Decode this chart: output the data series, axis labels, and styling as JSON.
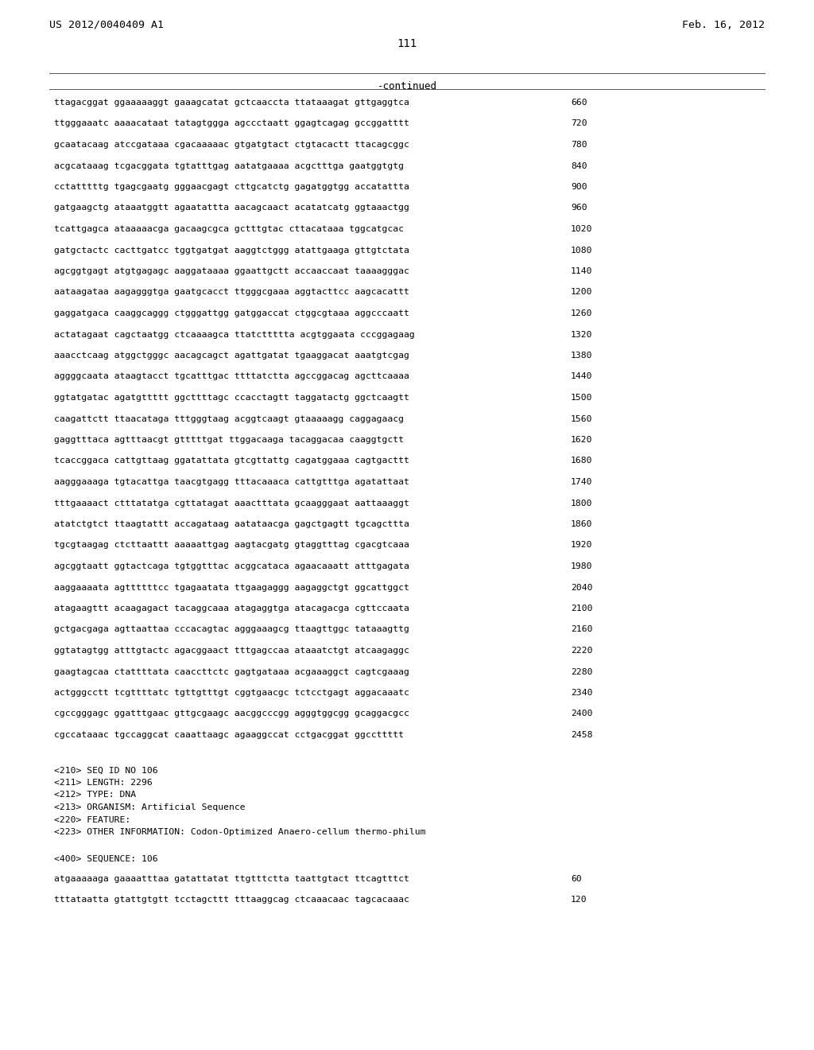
{
  "header_left": "US 2012/0040409 A1",
  "header_right": "Feb. 16, 2012",
  "page_number": "111",
  "continued_label": "-continued",
  "background_color": "#ffffff",
  "text_color": "#000000",
  "sequence_lines": [
    [
      "ttagacggat ggaaaaaggt gaaagcatat gctcaaccta ttataaagat gttgaggtca",
      "660"
    ],
    [
      "ttgggaaatc aaaacataat tatagtggga agccctaatt ggagtcagag gccggatttt",
      "720"
    ],
    [
      "gcaatacaag atccgataaa cgacaaaaac gtgatgtact ctgtacactt ttacagcggc",
      "780"
    ],
    [
      "acgcataaag tcgacggata tgtatttgag aatatgaaaa acgctttga gaatggtgtg",
      "840"
    ],
    [
      "cctatttttg tgagcgaatg gggaacgagt cttgcatctg gagatggtgg accatattta",
      "900"
    ],
    [
      "gatgaagctg ataaatggtt agaatattta aacagcaact acatatcatg ggtaaactgg",
      "960"
    ],
    [
      "tcattgagca ataaaaacga gacaagcgca gctttgtac cttacataaa tggcatgcac",
      "1020"
    ],
    [
      "gatgctactc cacttgatcc tggtgatgat aaggtctggg atattgaaga gttgtctata",
      "1080"
    ],
    [
      "agcggtgagt atgtgagagc aaggataaaa ggaattgctt accaaccaat taaaagggac",
      "1140"
    ],
    [
      "aataagataa aagagggtga gaatgcacct ttgggcgaaa aggtacttcc aagcacattt",
      "1200"
    ],
    [
      "gaggatgaca caaggcaggg ctgggattgg gatggaccat ctggcgtaaa aggcccaatt",
      "1260"
    ],
    [
      "actatagaat cagctaatgg ctcaaaagca ttatcttttta acgtggaata cccggagaag",
      "1320"
    ],
    [
      "aaacctcaag atggctgggc aacagcagct agattgatat tgaaggacat aaatgtcgag",
      "1380"
    ],
    [
      "aggggcaata ataagtacct tgcatttgac ttttatctta agccggacag agcttcaaaa",
      "1440"
    ],
    [
      "ggtatgatac agatgttttt ggcttttagc ccacctagtt taggatactg ggctcaagtt",
      "1500"
    ],
    [
      "caagattctt ttaacataga tttgggtaag acggtcaagt gtaaaaagg caggagaacg",
      "1560"
    ],
    [
      "gaggtttaca agtttaacgt gtttttgat ttggacaaga tacaggacaa caaggtgctt",
      "1620"
    ],
    [
      "tcaccggaca cattgttaag ggatattata gtcgttattg cagatggaaa cagtgacttt",
      "1680"
    ],
    [
      "aagggaaaga tgtacattga taacgtgagg tttacaaaca cattgtttga agatattaat",
      "1740"
    ],
    [
      "tttgaaaact ctttatatga cgttatagat aaactttata gcaagggaat aattaaaggt",
      "1800"
    ],
    [
      "atatctgtct ttaagtattt accagataag aatataacga gagctgagtt tgcagcttta",
      "1860"
    ],
    [
      "tgcgtaagag ctcttaattt aaaaattgag aagtacgatg gtaggtttag cgacgtcaaa",
      "1920"
    ],
    [
      "agcggtaatt ggtactcaga tgtggtttac acggcataca agaacaaatt atttgagata",
      "1980"
    ],
    [
      "aaggaaaata agttttttcc tgagaatata ttgaagaggg aagaggctgt ggcattggct",
      "2040"
    ],
    [
      "atagaagttt acaagagact tacaggcaaa atagaggtga atacagacga cgttccaata",
      "2100"
    ],
    [
      "gctgacgaga agttaattaa cccacagtac agggaaagcg ttaagttggc tataaagttg",
      "2160"
    ],
    [
      "ggtatagtgg atttgtactc agacggaact tttgagccaa ataaatctgt atcaagaggc",
      "2220"
    ],
    [
      "gaagtagcaa ctattttata caaccttctc gagtgataaa acgaaaggct cagtcgaaag",
      "2280"
    ],
    [
      "actgggcctt tcgttttatc tgttgtttgt cggtgaacgc tctcctgagt aggacaaatc",
      "2340"
    ],
    [
      "cgccgggagc ggatttgaac gttgcgaagc aacggcccgg agggtggcgg gcaggacgcc",
      "2400"
    ],
    [
      "cgccataaac tgccaggcat caaattaagc agaaggccat cctgacggat ggccttttt",
      "2458"
    ]
  ],
  "metadata_lines": [
    "<210> SEQ ID NO 106",
    "<211> LENGTH: 2296",
    "<212> TYPE: DNA",
    "<213> ORGANISM: Artificial Sequence",
    "<220> FEATURE:",
    "<223> OTHER INFORMATION: Codon-Optimized Anaero-cellum thermo-philum"
  ],
  "seq400_label": "<400> SEQUENCE: 106",
  "seq400_lines": [
    [
      "atgaaaaaga gaaaatttaa gatattatat ttgtttctta taattgtact ttcagtttct",
      "60"
    ],
    [
      "tttataatta gtattgtgtt tcctagcttt tttaaggcag ctcaaacaac tagcacaaac",
      "120"
    ]
  ]
}
